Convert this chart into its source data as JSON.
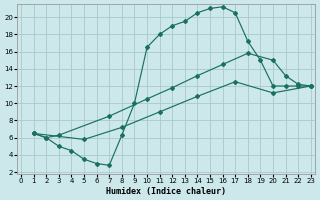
{
  "xlabel": "Humidex (Indice chaleur)",
  "bg_color": "#cce8ea",
  "grid_color": "#a8c8cc",
  "line_color": "#1a7060",
  "xlim": [
    -0.3,
    23.3
  ],
  "ylim": [
    1.8,
    21.5
  ],
  "xticks": [
    0,
    1,
    2,
    3,
    4,
    5,
    6,
    7,
    8,
    9,
    10,
    11,
    12,
    13,
    14,
    15,
    16,
    17,
    18,
    19,
    20,
    21,
    22,
    23
  ],
  "yticks": [
    2,
    4,
    6,
    8,
    10,
    12,
    14,
    16,
    18,
    20
  ],
  "curve1_x": [
    1,
    2,
    3,
    4,
    5,
    6,
    7,
    8,
    9,
    10,
    11,
    12,
    13,
    14,
    15,
    16,
    17,
    18,
    19,
    20,
    21,
    22,
    23
  ],
  "curve1_y": [
    6.5,
    6.0,
    5.0,
    4.5,
    3.5,
    3.0,
    2.8,
    6.3,
    10.0,
    16.5,
    18.0,
    19.0,
    19.5,
    20.5,
    21.0,
    21.2,
    20.5,
    17.2,
    15.0,
    12.0,
    12.0,
    12.0,
    12.0
  ],
  "curve2_x": [
    1,
    2,
    3,
    7,
    10,
    12,
    14,
    16,
    18,
    20,
    21,
    22,
    23
  ],
  "curve2_y": [
    6.5,
    6.0,
    6.3,
    8.5,
    10.5,
    11.8,
    13.2,
    14.5,
    15.8,
    15.0,
    13.2,
    12.2,
    12.0
  ],
  "curve3_x": [
    1,
    5,
    8,
    11,
    14,
    17,
    20,
    23
  ],
  "curve3_y": [
    6.5,
    5.8,
    7.2,
    9.0,
    10.8,
    12.5,
    11.2,
    12.0
  ]
}
